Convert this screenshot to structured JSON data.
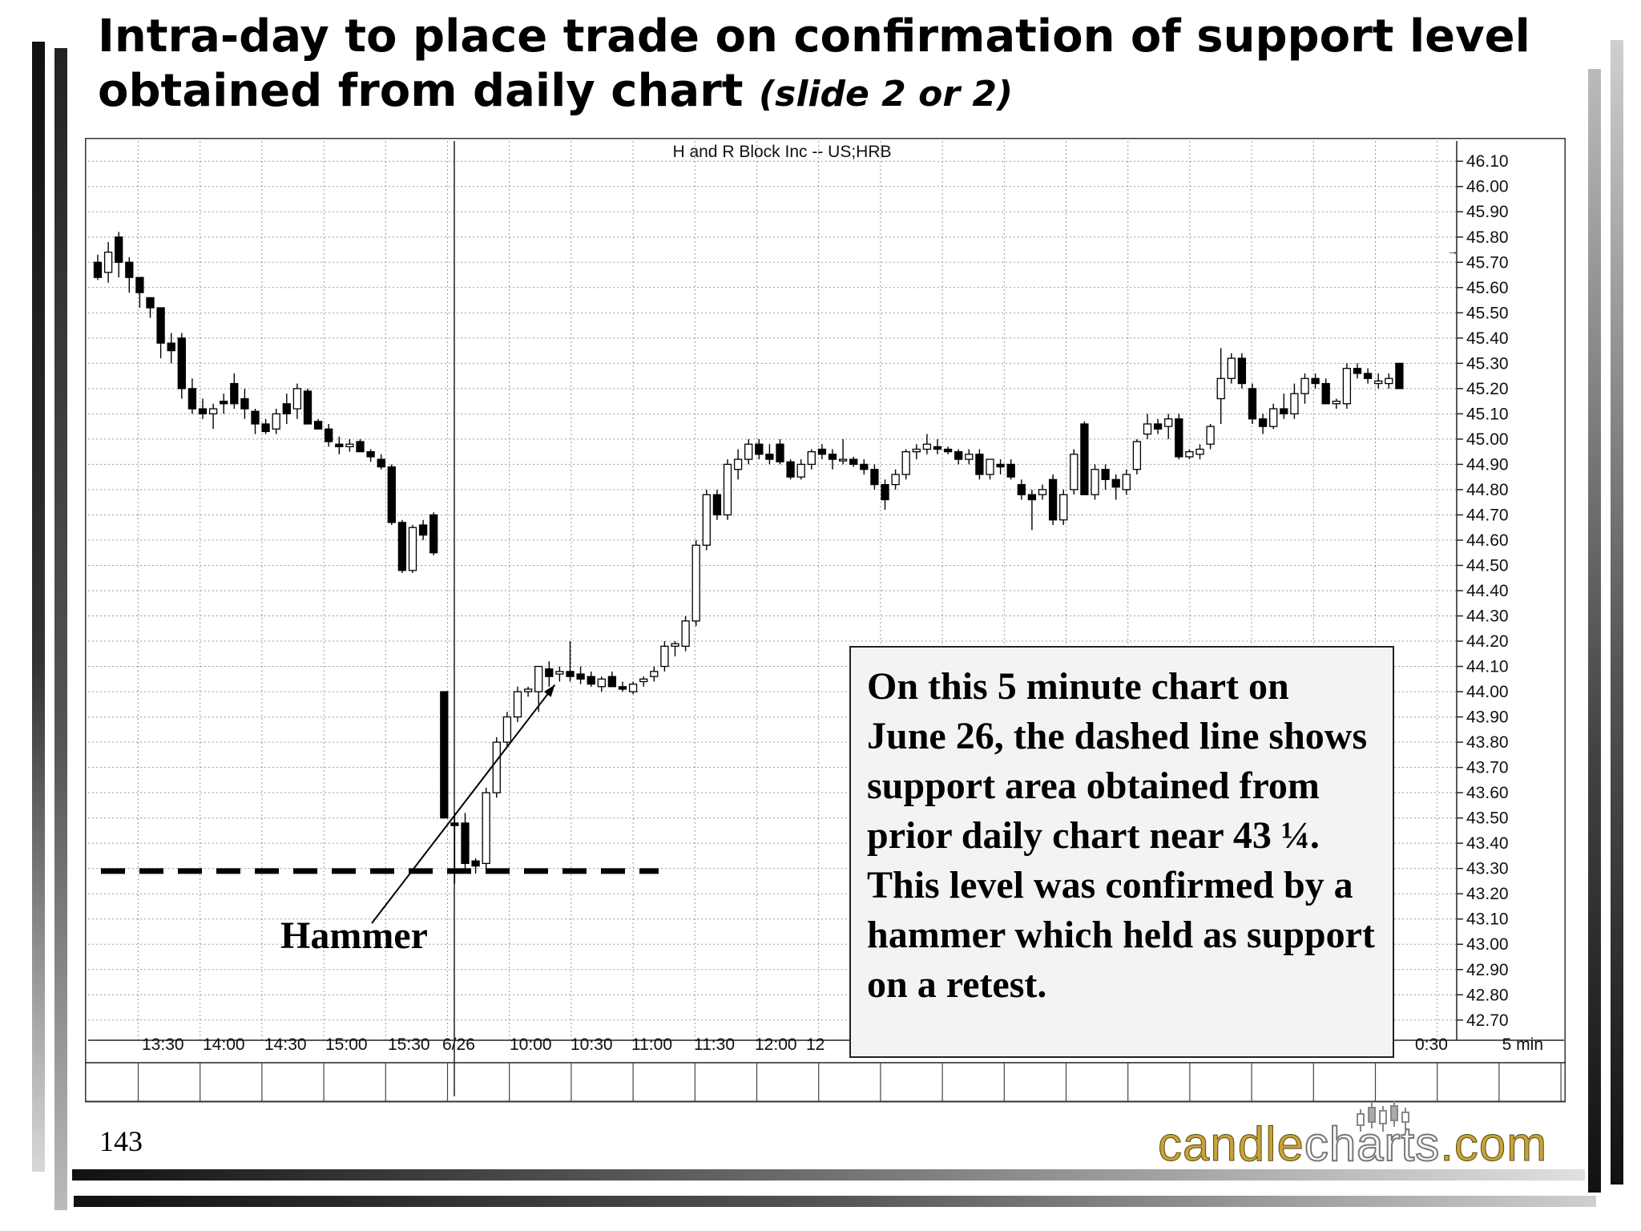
{
  "slide": {
    "title": "Intra-day to place trade on confirmation of support level obtained from daily chart",
    "subtitle": "(slide 2 or 2)",
    "page_number": "143",
    "logo": {
      "part1": "candle",
      "part2": "charts",
      "part3": ".com"
    },
    "annotation": "On this 5 minute chart on June 26, the dashed line shows support area obtained from prior daily chart near 43 ¼. This level was confirmed by a hammer which held as support on a retest.",
    "hammer_label": "Hammer"
  },
  "colors": {
    "background": "#ffffff",
    "grid": "#999999",
    "candle_up": "#ffffff",
    "candle_down": "#000000",
    "annotation_bg": "#f3f3f3"
  },
  "chart_data": {
    "type": "candlestick",
    "title": "H  and  R  Block  Inc  --  US;HRB",
    "interval_label": "5  min",
    "x_tick_labels": [
      "13:30",
      "14:00",
      "14:30",
      "15:00",
      "15:30",
      "6/26",
      "10:00",
      "10:30",
      "11:00",
      "11:30",
      "12:00",
      "12",
      "0:30"
    ],
    "y_tick_labels": [
      "46.10",
      "46.00",
      "45.90",
      "45.80",
      "45.70",
      "45.60",
      "45.50",
      "45.40",
      "45.30",
      "45.20",
      "45.10",
      "45.00",
      "44.90",
      "44.80",
      "44.70",
      "44.60",
      "44.50",
      "44.40",
      "44.30",
      "44.20",
      "44.10",
      "44.00",
      "43.90",
      "43.80",
      "43.70",
      "43.60",
      "43.50",
      "43.40",
      "43.30",
      "43.20",
      "43.10",
      "43.00",
      "42.90",
      "42.80",
      "42.70"
    ],
    "ylim": [
      42.62,
      46.18
    ],
    "support_level": 43.29,
    "hammer_index": 44,
    "grid": true,
    "ohlc": [
      [
        45.7,
        45.73,
        45.63,
        45.64
      ],
      [
        45.66,
        45.78,
        45.62,
        45.74
      ],
      [
        45.8,
        45.82,
        45.64,
        45.7
      ],
      [
        45.7,
        45.72,
        45.58,
        45.64
      ],
      [
        45.64,
        45.64,
        45.52,
        45.58
      ],
      [
        45.56,
        45.56,
        45.48,
        45.52
      ],
      [
        45.52,
        45.52,
        45.32,
        45.38
      ],
      [
        45.38,
        45.42,
        45.3,
        45.35
      ],
      [
        45.4,
        45.42,
        45.16,
        45.2
      ],
      [
        45.2,
        45.24,
        45.1,
        45.12
      ],
      [
        45.12,
        45.16,
        45.08,
        45.1
      ],
      [
        45.1,
        45.14,
        45.04,
        45.12
      ],
      [
        45.15,
        45.18,
        45.1,
        45.14
      ],
      [
        45.22,
        45.26,
        45.12,
        45.14
      ],
      [
        45.16,
        45.2,
        45.08,
        45.12
      ],
      [
        45.11,
        45.12,
        45.02,
        45.06
      ],
      [
        45.06,
        45.08,
        45.02,
        45.03
      ],
      [
        45.04,
        45.12,
        45.02,
        45.1
      ],
      [
        45.14,
        45.18,
        45.06,
        45.1
      ],
      [
        45.12,
        45.22,
        45.08,
        45.2
      ],
      [
        45.19,
        45.2,
        45.06,
        45.06
      ],
      [
        45.07,
        45.08,
        45.04,
        45.04
      ],
      [
        45.04,
        45.06,
        44.97,
        44.99
      ],
      [
        44.98,
        45.01,
        44.94,
        44.97
      ],
      [
        44.97,
        45.0,
        44.95,
        44.98
      ],
      [
        44.99,
        45.0,
        44.95,
        44.95
      ],
      [
        44.95,
        44.96,
        44.91,
        44.93
      ],
      [
        44.92,
        44.94,
        44.88,
        44.89
      ],
      [
        44.89,
        44.9,
        44.66,
        44.67
      ],
      [
        44.67,
        44.68,
        44.47,
        44.48
      ],
      [
        44.48,
        44.66,
        44.47,
        44.65
      ],
      [
        44.66,
        44.68,
        44.6,
        44.62
      ],
      [
        44.7,
        44.71,
        44.54,
        44.55
      ],
      [
        44.0,
        44.0,
        43.5,
        43.5
      ],
      [
        43.48,
        43.52,
        43.24,
        43.47
      ],
      [
        43.48,
        43.52,
        43.28,
        43.32
      ],
      [
        43.33,
        43.34,
        43.28,
        43.31
      ],
      [
        43.32,
        43.62,
        43.3,
        43.6
      ],
      [
        43.6,
        43.82,
        43.58,
        43.8
      ],
      [
        43.8,
        43.92,
        43.78,
        43.9
      ],
      [
        43.9,
        44.02,
        43.88,
        44.0
      ],
      [
        44.0,
        44.02,
        43.98,
        44.01
      ],
      [
        44.0,
        44.1,
        43.92,
        44.1
      ],
      [
        44.09,
        44.12,
        44.02,
        44.06
      ],
      [
        44.07,
        44.1,
        44.04,
        44.08
      ],
      [
        44.08,
        44.2,
        44.04,
        44.06
      ],
      [
        44.07,
        44.1,
        44.03,
        44.05
      ],
      [
        44.06,
        44.08,
        44.02,
        44.03
      ],
      [
        44.02,
        44.06,
        44.0,
        44.05
      ],
      [
        44.06,
        44.08,
        44.02,
        44.02
      ],
      [
        44.02,
        44.04,
        44.0,
        44.01
      ],
      [
        44.0,
        44.04,
        43.99,
        44.03
      ],
      [
        44.04,
        44.06,
        44.02,
        44.05
      ],
      [
        44.06,
        44.1,
        44.04,
        44.08
      ],
      [
        44.1,
        44.2,
        44.08,
        44.18
      ],
      [
        44.18,
        44.2,
        44.14,
        44.19
      ],
      [
        44.18,
        44.3,
        44.16,
        44.28
      ],
      [
        44.28,
        44.6,
        44.26,
        44.58
      ],
      [
        44.58,
        44.8,
        44.56,
        44.78
      ],
      [
        44.78,
        44.8,
        44.68,
        44.7
      ],
      [
        44.7,
        44.92,
        44.68,
        44.9
      ],
      [
        44.88,
        44.96,
        44.84,
        44.92
      ],
      [
        44.92,
        45.0,
        44.9,
        44.98
      ],
      [
        44.98,
        45.0,
        44.92,
        44.94
      ],
      [
        44.94,
        44.98,
        44.9,
        44.92
      ],
      [
        44.98,
        45.0,
        44.9,
        44.91
      ],
      [
        44.91,
        44.92,
        44.84,
        44.85
      ],
      [
        44.85,
        44.92,
        44.84,
        44.9
      ],
      [
        44.9,
        44.96,
        44.88,
        44.95
      ],
      [
        44.96,
        44.98,
        44.92,
        44.94
      ],
      [
        44.94,
        44.96,
        44.88,
        44.92
      ],
      [
        44.92,
        45.0,
        44.9,
        44.92
      ],
      [
        44.92,
        44.93,
        44.89,
        44.9
      ],
      [
        44.9,
        44.92,
        44.86,
        44.88
      ],
      [
        44.88,
        44.9,
        44.8,
        44.82
      ],
      [
        44.82,
        44.84,
        44.72,
        44.76
      ],
      [
        44.82,
        44.88,
        44.8,
        44.86
      ],
      [
        44.86,
        44.96,
        44.84,
        44.95
      ],
      [
        44.95,
        44.98,
        44.92,
        44.96
      ],
      [
        44.96,
        45.02,
        44.94,
        44.98
      ],
      [
        44.97,
        45.0,
        44.94,
        44.96
      ],
      [
        44.96,
        44.97,
        44.94,
        44.95
      ],
      [
        44.95,
        44.96,
        44.9,
        44.92
      ],
      [
        44.92,
        44.96,
        44.9,
        44.94
      ],
      [
        44.94,
        44.96,
        44.84,
        44.86
      ],
      [
        44.86,
        44.92,
        44.84,
        44.92
      ],
      [
        44.9,
        44.92,
        44.86,
        44.89
      ],
      [
        44.9,
        44.92,
        44.84,
        44.85
      ],
      [
        44.82,
        44.84,
        44.76,
        44.78
      ],
      [
        44.78,
        44.8,
        44.64,
        44.76
      ],
      [
        44.78,
        44.82,
        44.76,
        44.8
      ],
      [
        44.84,
        44.86,
        44.66,
        44.68
      ],
      [
        44.68,
        44.8,
        44.66,
        44.78
      ],
      [
        44.8,
        44.96,
        44.78,
        44.94
      ],
      [
        45.06,
        45.07,
        44.78,
        44.78
      ],
      [
        44.78,
        44.9,
        44.76,
        44.88
      ],
      [
        44.88,
        44.9,
        44.8,
        44.84
      ],
      [
        44.84,
        44.86,
        44.76,
        44.81
      ],
      [
        44.8,
        44.88,
        44.78,
        44.86
      ],
      [
        44.88,
        45.0,
        44.86,
        44.99
      ],
      [
        45.02,
        45.1,
        45.0,
        45.06
      ],
      [
        45.06,
        45.08,
        45.02,
        45.04
      ],
      [
        45.05,
        45.1,
        45.0,
        45.08
      ],
      [
        45.08,
        45.1,
        44.92,
        44.93
      ],
      [
        44.93,
        44.96,
        44.92,
        44.95
      ],
      [
        44.94,
        44.98,
        44.92,
        44.96
      ],
      [
        44.98,
        45.06,
        44.96,
        45.05
      ],
      [
        45.16,
        45.36,
        45.06,
        45.24
      ],
      [
        45.24,
        45.34,
        45.22,
        45.32
      ],
      [
        45.32,
        45.34,
        45.2,
        45.22
      ],
      [
        45.2,
        45.22,
        45.06,
        45.08
      ],
      [
        45.08,
        45.1,
        45.02,
        45.05
      ],
      [
        45.05,
        45.14,
        45.04,
        45.12
      ],
      [
        45.12,
        45.18,
        45.08,
        45.1
      ],
      [
        45.1,
        45.22,
        45.08,
        45.18
      ],
      [
        45.18,
        45.26,
        45.14,
        45.24
      ],
      [
        45.24,
        45.26,
        45.2,
        45.22
      ],
      [
        45.22,
        45.24,
        45.14,
        45.14
      ],
      [
        45.14,
        45.16,
        45.12,
        45.15
      ],
      [
        45.14,
        45.3,
        45.12,
        45.28
      ],
      [
        45.28,
        45.3,
        45.24,
        45.26
      ],
      [
        45.26,
        45.28,
        45.22,
        45.24
      ],
      [
        45.22,
        45.26,
        45.2,
        45.23
      ],
      [
        45.22,
        45.26,
        45.2,
        45.24
      ],
      [
        45.3,
        45.3,
        45.2,
        45.2
      ]
    ]
  }
}
